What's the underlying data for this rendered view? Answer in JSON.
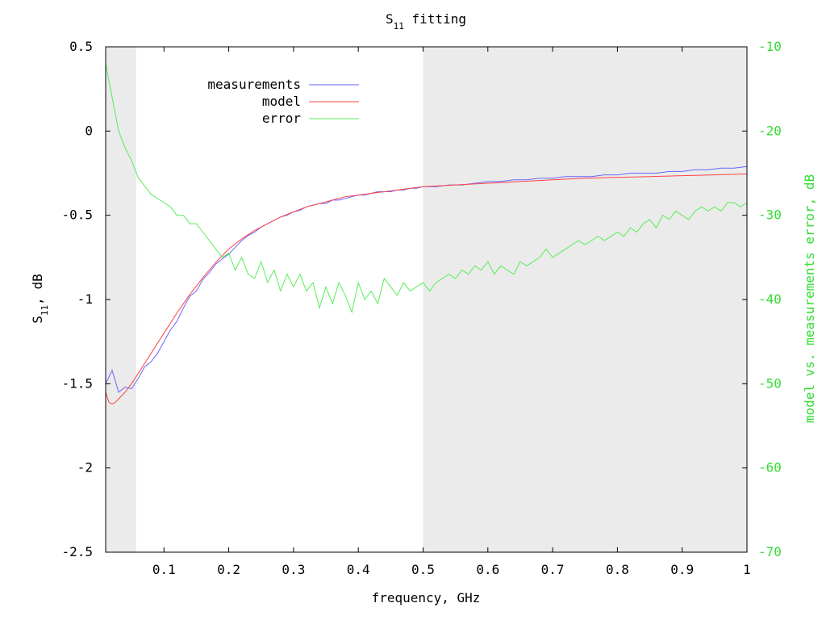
{
  "chart_data": {
    "type": "line",
    "title": "S11 fitting",
    "title_main": "S",
    "title_sub": "11",
    "title_rest": " fitting",
    "xlabel": "frequency, GHz",
    "ylabel_main": "S",
    "ylabel_sub": "11",
    "ylabel_rest": ", dB",
    "y2label": "model vs. measurements error, dB",
    "xlim": [
      0.01,
      1.0
    ],
    "ylim": [
      -2.5,
      0.5
    ],
    "y2lim": [
      -70,
      -10
    ],
    "xticks": [
      0.1,
      0.2,
      0.3,
      0.4,
      0.5,
      0.6,
      0.7,
      0.8,
      0.9,
      1
    ],
    "xtick_labels": [
      "0.1",
      "0.2",
      "0.3",
      "0.4",
      "0.5",
      "0.6",
      "0.7",
      "0.8",
      "0.9",
      "1"
    ],
    "yticks": [
      0.5,
      0,
      -0.5,
      -1,
      -1.5,
      -2,
      -2.5
    ],
    "ytick_labels": [
      "0.5",
      "0",
      "-0.5",
      "-1",
      "-1.5",
      "-2",
      "-2.5"
    ],
    "y2ticks": [
      -10,
      -20,
      -30,
      -40,
      -50,
      -60,
      -70
    ],
    "y2tick_labels": [
      "-10",
      "-20",
      "-30",
      "-40",
      "-50",
      "-60",
      "-70"
    ],
    "shaded_regions": [
      {
        "x0": 0.01,
        "x1": 0.057,
        "color": "#ebebeb"
      },
      {
        "x0": 0.5,
        "x1": 1.0,
        "color": "#ebebeb"
      }
    ],
    "legend_position": "top-left",
    "colors": {
      "measurements": "#6666ff",
      "model": "#ff4444",
      "error": "#55ee55",
      "y2axis": "#33dd33"
    },
    "series": [
      {
        "name": "measurements",
        "axis": "y",
        "x": [
          0.01,
          0.02,
          0.03,
          0.04,
          0.05,
          0.06,
          0.07,
          0.08,
          0.09,
          0.1,
          0.11,
          0.12,
          0.13,
          0.14,
          0.15,
          0.16,
          0.17,
          0.18,
          0.19,
          0.2,
          0.21,
          0.22,
          0.23,
          0.24,
          0.25,
          0.26,
          0.27,
          0.28,
          0.29,
          0.3,
          0.31,
          0.32,
          0.33,
          0.34,
          0.35,
          0.36,
          0.37,
          0.38,
          0.39,
          0.4,
          0.41,
          0.42,
          0.43,
          0.44,
          0.45,
          0.46,
          0.47,
          0.48,
          0.49,
          0.5,
          0.52,
          0.54,
          0.56,
          0.58,
          0.6,
          0.62,
          0.64,
          0.66,
          0.68,
          0.7,
          0.72,
          0.74,
          0.76,
          0.78,
          0.8,
          0.82,
          0.84,
          0.86,
          0.88,
          0.9,
          0.92,
          0.94,
          0.96,
          0.98,
          1.0
        ],
        "y": [
          -1.5,
          -1.42,
          -1.55,
          -1.52,
          -1.53,
          -1.47,
          -1.4,
          -1.37,
          -1.32,
          -1.25,
          -1.18,
          -1.13,
          -1.05,
          -0.98,
          -0.95,
          -0.88,
          -0.84,
          -0.79,
          -0.76,
          -0.73,
          -0.69,
          -0.65,
          -0.62,
          -0.6,
          -0.57,
          -0.55,
          -0.53,
          -0.51,
          -0.5,
          -0.48,
          -0.47,
          -0.45,
          -0.44,
          -0.43,
          -0.43,
          -0.41,
          -0.41,
          -0.4,
          -0.39,
          -0.38,
          -0.38,
          -0.37,
          -0.36,
          -0.36,
          -0.36,
          -0.35,
          -0.35,
          -0.34,
          -0.34,
          -0.33,
          -0.33,
          -0.32,
          -0.32,
          -0.31,
          -0.3,
          -0.3,
          -0.29,
          -0.29,
          -0.28,
          -0.28,
          -0.27,
          -0.27,
          -0.27,
          -0.26,
          -0.26,
          -0.25,
          -0.25,
          -0.25,
          -0.24,
          -0.24,
          -0.23,
          -0.23,
          -0.22,
          -0.22,
          -0.21
        ]
      },
      {
        "name": "model",
        "axis": "y",
        "x": [
          0.01,
          0.015,
          0.02,
          0.025,
          0.03,
          0.04,
          0.05,
          0.06,
          0.07,
          0.08,
          0.09,
          0.1,
          0.12,
          0.14,
          0.16,
          0.18,
          0.2,
          0.22,
          0.24,
          0.26,
          0.28,
          0.3,
          0.32,
          0.34,
          0.36,
          0.38,
          0.4,
          0.42,
          0.44,
          0.46,
          0.48,
          0.5,
          0.55,
          0.6,
          0.65,
          0.7,
          0.75,
          0.8,
          0.85,
          0.9,
          0.95,
          1.0
        ],
        "y": [
          -1.55,
          -1.61,
          -1.62,
          -1.61,
          -1.59,
          -1.55,
          -1.5,
          -1.44,
          -1.38,
          -1.32,
          -1.26,
          -1.2,
          -1.08,
          -0.97,
          -0.87,
          -0.78,
          -0.7,
          -0.64,
          -0.59,
          -0.55,
          -0.51,
          -0.48,
          -0.45,
          -0.43,
          -0.41,
          -0.39,
          -0.38,
          -0.37,
          -0.36,
          -0.35,
          -0.34,
          -0.33,
          -0.32,
          -0.31,
          -0.3,
          -0.29,
          -0.28,
          -0.275,
          -0.27,
          -0.265,
          -0.26,
          -0.255
        ]
      },
      {
        "name": "error",
        "axis": "y2",
        "x": [
          0.01,
          0.02,
          0.03,
          0.04,
          0.05,
          0.06,
          0.07,
          0.08,
          0.09,
          0.1,
          0.11,
          0.12,
          0.13,
          0.14,
          0.15,
          0.16,
          0.17,
          0.18,
          0.19,
          0.2,
          0.21,
          0.22,
          0.23,
          0.24,
          0.25,
          0.26,
          0.27,
          0.28,
          0.29,
          0.3,
          0.31,
          0.32,
          0.33,
          0.34,
          0.35,
          0.36,
          0.37,
          0.38,
          0.39,
          0.4,
          0.41,
          0.42,
          0.43,
          0.44,
          0.45,
          0.46,
          0.47,
          0.48,
          0.49,
          0.5,
          0.51,
          0.52,
          0.53,
          0.54,
          0.55,
          0.56,
          0.57,
          0.58,
          0.59,
          0.6,
          0.61,
          0.62,
          0.63,
          0.64,
          0.65,
          0.66,
          0.67,
          0.68,
          0.69,
          0.7,
          0.71,
          0.72,
          0.73,
          0.74,
          0.75,
          0.76,
          0.77,
          0.78,
          0.79,
          0.8,
          0.81,
          0.82,
          0.83,
          0.84,
          0.85,
          0.86,
          0.87,
          0.88,
          0.89,
          0.9,
          0.91,
          0.92,
          0.93,
          0.94,
          0.95,
          0.96,
          0.97,
          0.98,
          0.99,
          1.0
        ],
        "y": [
          -12,
          -16,
          -20,
          -22,
          -23.5,
          -25.5,
          -26.5,
          -27.5,
          -28,
          -28.5,
          -29,
          -30,
          -30,
          -31,
          -31,
          -32,
          -33,
          -34,
          -35,
          -34.5,
          -36.5,
          -35,
          -37,
          -37.5,
          -35.5,
          -38,
          -36.5,
          -39,
          -37,
          -38.5,
          -37,
          -39,
          -38,
          -41,
          -38.5,
          -40.5,
          -38,
          -39.5,
          -41.5,
          -38,
          -40,
          -39,
          -40.5,
          -37.5,
          -38.5,
          -39.5,
          -38,
          -39,
          -38.5,
          -38,
          -39,
          -38,
          -37.5,
          -37,
          -37.5,
          -36.5,
          -37,
          -36,
          -36.5,
          -35.5,
          -37,
          -36,
          -36.5,
          -37,
          -35.5,
          -36,
          -35.5,
          -35,
          -34,
          -35,
          -34.5,
          -34,
          -33.5,
          -33,
          -33.5,
          -33,
          -32.5,
          -33,
          -32.5,
          -32,
          -32.5,
          -31.5,
          -32,
          -31,
          -30.5,
          -31.5,
          -30,
          -30.5,
          -29.5,
          -30,
          -30.5,
          -29.5,
          -29,
          -29.5,
          -29,
          -29.5,
          -28.5,
          -28.5,
          -29,
          -28.5
        ]
      }
    ]
  }
}
